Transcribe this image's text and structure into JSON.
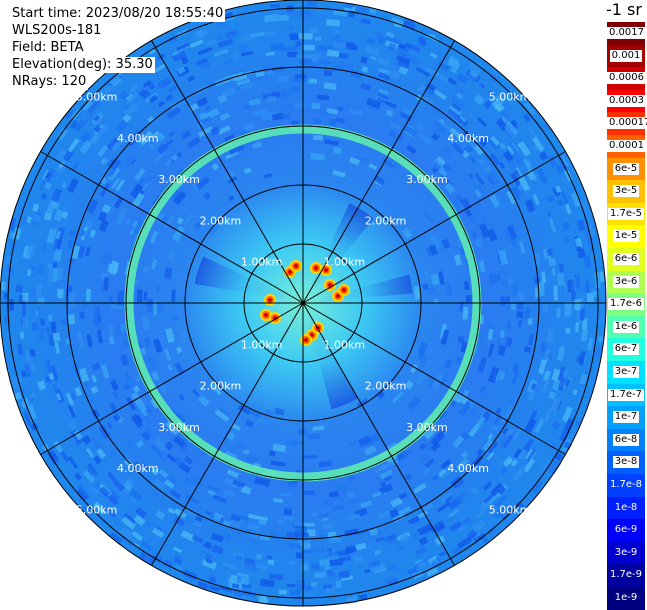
{
  "info": {
    "start_time": "Start time: 2023/08/20 18:55:40",
    "instrument": "WLS200s-181",
    "field": "Field: BETA",
    "elevation": "Elevation(deg): 35.30",
    "nrays": "NRays: 120"
  },
  "unit_label": "-1 sr",
  "range_rings": [
    "1.00km",
    "2.00km",
    "3.00km",
    "4.00km",
    "5.00km"
  ],
  "colorbar": {
    "labels": [
      "0.0017",
      "0.001",
      "0.0006",
      "0.0003",
      "0.00017",
      "0.0001",
      "6e-5",
      "3e-5",
      "1.7e-5",
      "1e-5",
      "6e-6",
      "3e-6",
      "1.7e-6",
      "1e-6",
      "6e-7",
      "3e-7",
      "1.7e-7",
      "1e-7",
      "6e-8",
      "3e-8",
      "1.7e-8",
      "1e-8",
      "6e-9",
      "3e-9",
      "1.7e-9",
      "1e-9"
    ],
    "colors": [
      "#800000",
      "#a00000",
      "#d00000",
      "#ff0000",
      "#ff3000",
      "#ff6000",
      "#ff9000",
      "#ffc000",
      "#ffe000",
      "#ffff00",
      "#e0ff20",
      "#b0ff50",
      "#80ff80",
      "#50ffb0",
      "#20ffe0",
      "#00e0ff",
      "#00c0ff",
      "#00a0ff",
      "#0080ff",
      "#0060ff",
      "#0040ff",
      "#0020ff",
      "#0000ff",
      "#0000d0",
      "#0000a0",
      "#000080"
    ]
  }
}
